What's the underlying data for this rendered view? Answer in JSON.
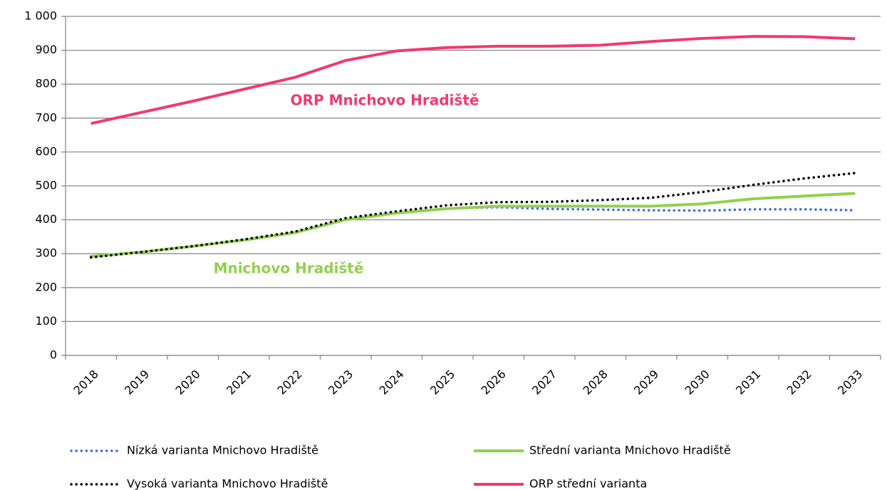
{
  "chart_data": {
    "type": "line",
    "categories": [
      "2018",
      "2019",
      "2020",
      "2021",
      "2022",
      "2023",
      "2024",
      "2025",
      "2026",
      "2027",
      "2028",
      "2029",
      "2030",
      "2031",
      "2032",
      "2033"
    ],
    "series": [
      {
        "name": "Nízká varianta Mnichovo Hradiště",
        "color": "#3b6cf0",
        "style": "dotted",
        "values": [
          292,
          305,
          322,
          340,
          362,
          400,
          420,
          433,
          437,
          432,
          430,
          428,
          427,
          431,
          431,
          428
        ]
      },
      {
        "name": "Střední varianta Mnichovo Hradiště",
        "color": "#92d050",
        "style": "solid",
        "values": [
          292,
          305,
          322,
          340,
          362,
          400,
          420,
          433,
          440,
          440,
          440,
          440,
          447,
          462,
          470,
          478
        ]
      },
      {
        "name": "Vysoká varianta Mnichovo Hradiště",
        "color": "#000000",
        "style": "dotted",
        "values": [
          289,
          305,
          322,
          342,
          365,
          405,
          425,
          443,
          452,
          453,
          458,
          465,
          482,
          503,
          522,
          538
        ]
      },
      {
        "name": "ORP střední varianta",
        "color": "#ef3a6e",
        "style": "solid",
        "values": [
          684,
          717,
          750,
          785,
          820,
          870,
          898,
          908,
          912,
          912,
          915,
          926,
          935,
          941,
          940,
          934
        ]
      }
    ],
    "annotations": [
      {
        "text": "ORP Mnichovo Hradiště",
        "color": "#ef3a6e"
      },
      {
        "text": "Mnichovo Hradiště",
        "color": "#92d050"
      }
    ],
    "ylim": [
      0,
      1000
    ],
    "yticks": [
      0,
      100,
      200,
      300,
      400,
      500,
      600,
      700,
      800,
      900,
      {
        "value": 1000,
        "label": "1 000"
      }
    ],
    "grid": true
  }
}
